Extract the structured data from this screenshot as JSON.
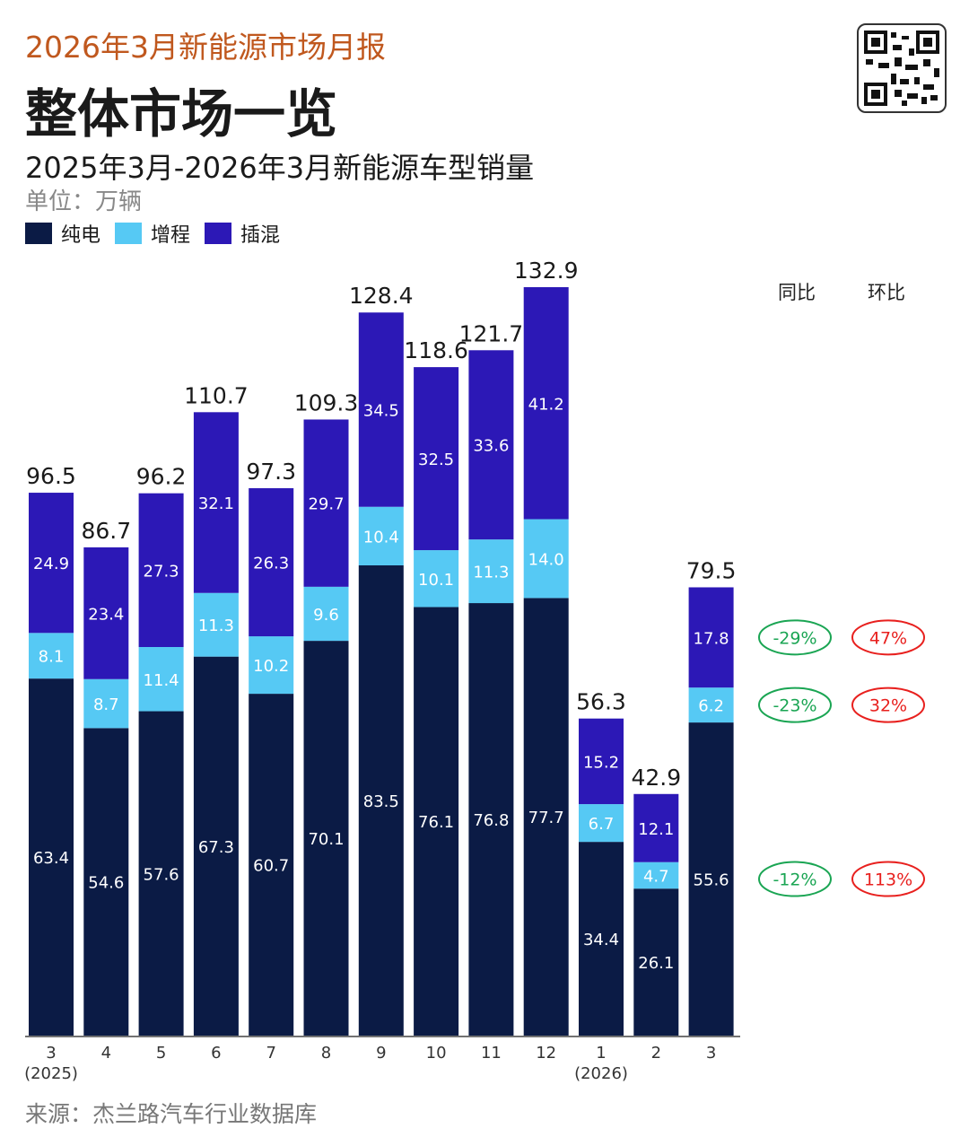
{
  "header": {
    "report_title": "2026年3月新能源市场月报",
    "page_title": "整体市场一览",
    "chart_title": "2025年3月-2026年3月新能源车型销量",
    "unit": "单位：万辆"
  },
  "legend": [
    {
      "label": "纯电",
      "color": "#0b1b45"
    },
    {
      "label": "增程",
      "color": "#56c9f4"
    },
    {
      "label": "插混",
      "color": "#2c18b6"
    }
  ],
  "chart_data": {
    "type": "bar",
    "stacked": true,
    "categories": [
      "3",
      "4",
      "5",
      "6",
      "7",
      "8",
      "9",
      "10",
      "11",
      "12",
      "1",
      "2",
      "3"
    ],
    "category_sublabels": [
      "(2025)",
      "",
      "",
      "",
      "",
      "",
      "",
      "",
      "",
      "",
      "(2026)",
      "",
      ""
    ],
    "series": [
      {
        "name": "纯电",
        "color": "#0b1b45",
        "values": [
          63.4,
          54.6,
          57.6,
          67.3,
          60.7,
          70.1,
          83.5,
          76.1,
          76.8,
          77.7,
          34.4,
          26.1,
          55.6
        ]
      },
      {
        "name": "增程",
        "color": "#56c9f4",
        "values": [
          8.1,
          8.7,
          11.4,
          11.3,
          10.2,
          9.6,
          10.4,
          10.1,
          11.3,
          14.0,
          6.7,
          4.7,
          6.2
        ]
      },
      {
        "name": "插混",
        "color": "#2c18b6",
        "values": [
          24.9,
          23.4,
          27.3,
          32.1,
          26.3,
          29.7,
          34.5,
          32.5,
          33.6,
          41.2,
          15.2,
          12.1,
          17.8
        ]
      }
    ],
    "totals": [
      96.5,
      86.7,
      96.2,
      110.7,
      97.3,
      109.3,
      128.4,
      118.6,
      121.7,
      132.9,
      56.3,
      42.9,
      79.5
    ],
    "ylim": [
      0,
      132.9
    ],
    "grid": false,
    "legend_position": "top-left"
  },
  "comparison": {
    "yoy_label": "同比",
    "mom_label": "环比",
    "rows": [
      {
        "series": "插混",
        "yoy": "-29%",
        "mom": "47%"
      },
      {
        "series": "增程",
        "yoy": "-23%",
        "mom": "32%"
      },
      {
        "series": "纯电",
        "yoy": "-12%",
        "mom": "113%"
      }
    ],
    "yoy_color": "#1aa553",
    "mom_color": "#e8201e"
  },
  "footer": {
    "source": "来源：杰兰路汽车行业数据库"
  }
}
